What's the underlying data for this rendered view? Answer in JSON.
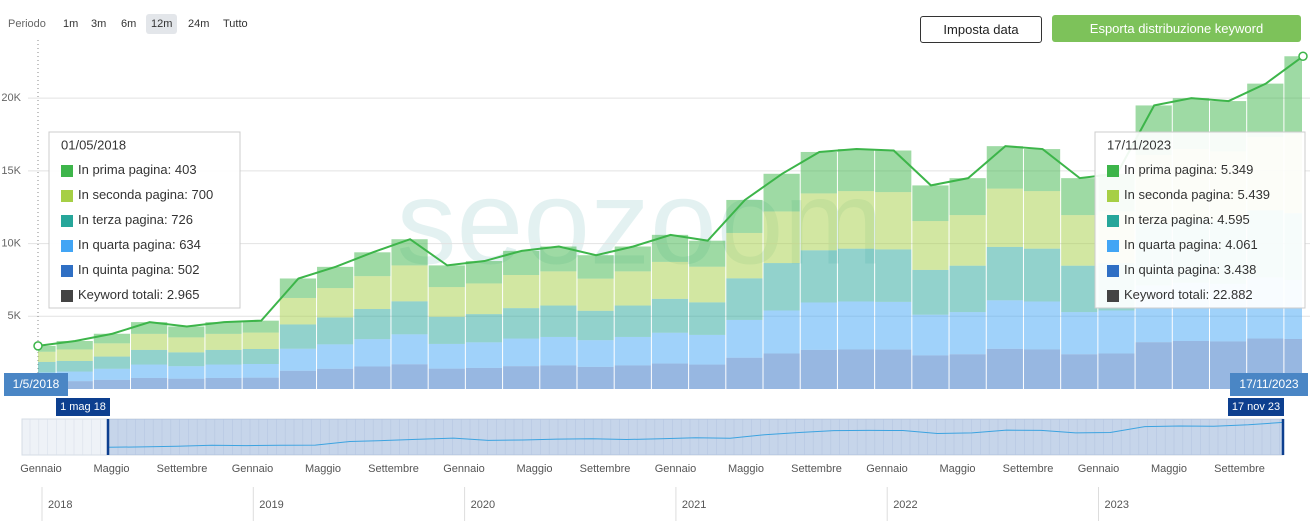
{
  "toolbar": {
    "period_label": "Periodo",
    "periods": [
      {
        "label": "1m"
      },
      {
        "label": "3m"
      },
      {
        "label": "6m"
      },
      {
        "label": "12m",
        "selected": true
      },
      {
        "label": "24m"
      },
      {
        "label": "Tutto"
      }
    ]
  },
  "buttons": {
    "set_date": "Imposta data",
    "export": "Esporta distribuzione keyword"
  },
  "watermark": "seozoom",
  "chart_data": {
    "type": "bar",
    "stacked": true,
    "categories": [
      "1/5/2018",
      null,
      null,
      null,
      null,
      null,
      null,
      null,
      null,
      null,
      null,
      null,
      null,
      null,
      null,
      null,
      null,
      null,
      null,
      null,
      null,
      null,
      null,
      null,
      null,
      null,
      null,
      null,
      null,
      null,
      null,
      null,
      null,
      null,
      "17/11/2023"
    ],
    "series": [
      {
        "name": "In prima pagina",
        "color": "#3db54a",
        "values": [
          403,
          580,
          660,
          810,
          750,
          810,
          820,
          1340,
          1460,
          1640,
          1800,
          1490,
          1540,
          1660,
          1710,
          1610,
          1710,
          1860,
          1790,
          2270,
          2590,
          2850,
          2890,
          2860,
          2450,
          2540,
          2920,
          2890,
          2540,
          2590,
          3410,
          3500,
          3460,
          3670,
          5349
        ],
        "value_labels": [
          "403",
          null,
          null,
          null,
          null,
          null,
          null,
          null,
          null,
          null,
          null,
          null,
          null,
          null,
          null,
          null,
          null,
          null,
          null,
          null,
          null,
          null,
          null,
          null,
          null,
          null,
          null,
          null,
          null,
          null,
          null,
          null,
          null,
          null,
          "5.349"
        ]
      },
      {
        "name": "In seconda pagina",
        "color": "#a6cf45",
        "values": [
          700,
          790,
          910,
          1100,
          1030,
          1100,
          1130,
          1820,
          2020,
          2260,
          2470,
          2040,
          2110,
          2280,
          2350,
          2210,
          2350,
          2540,
          2450,
          3120,
          3550,
          3910,
          3960,
          3940,
          3360,
          3480,
          4010,
          3960,
          3480,
          3550,
          4680,
          4800,
          4750,
          5040,
          5439
        ],
        "value_labels": [
          "700",
          null,
          null,
          null,
          null,
          null,
          null,
          null,
          null,
          null,
          null,
          null,
          null,
          null,
          null,
          null,
          null,
          null,
          null,
          null,
          null,
          null,
          null,
          null,
          null,
          null,
          null,
          null,
          null,
          null,
          null,
          null,
          null,
          null,
          "5.439"
        ]
      },
      {
        "name": "In terza pagina",
        "color": "#26a69a",
        "values": [
          726,
          730,
          840,
          1010,
          950,
          1010,
          1030,
          1670,
          1850,
          2070,
          2270,
          1870,
          1940,
          2090,
          2160,
          2020,
          2160,
          2330,
          2240,
          2860,
          3260,
          3590,
          3630,
          3610,
          3080,
          3190,
          3670,
          3630,
          3190,
          3260,
          4290,
          4400,
          4360,
          4620,
          4595
        ],
        "value_labels": [
          "726",
          null,
          null,
          null,
          null,
          null,
          null,
          null,
          null,
          null,
          null,
          null,
          null,
          null,
          null,
          null,
          null,
          null,
          null,
          null,
          null,
          null,
          null,
          null,
          null,
          null,
          null,
          null,
          null,
          null,
          null,
          null,
          null,
          null,
          "4.595"
        ]
      },
      {
        "name": "In quarta pagina",
        "color": "#42a5f5",
        "values": [
          634,
          660,
          760,
          920,
          860,
          920,
          940,
          1520,
          1680,
          1880,
          2060,
          1700,
          1760,
          1900,
          1960,
          1840,
          1960,
          2120,
          2040,
          2600,
          2960,
          3260,
          3300,
          3280,
          2800,
          2900,
          3340,
          3300,
          2900,
          2960,
          3900,
          4000,
          3960,
          4200,
          4061
        ],
        "value_labels": [
          "634",
          null,
          null,
          null,
          null,
          null,
          null,
          null,
          null,
          null,
          null,
          null,
          null,
          null,
          null,
          null,
          null,
          null,
          null,
          null,
          null,
          null,
          null,
          null,
          null,
          null,
          null,
          null,
          null,
          null,
          null,
          null,
          null,
          null,
          "4.061"
        ]
      },
      {
        "name": "In quinta pagina",
        "color": "#2f6fc4",
        "values": [
          502,
          540,
          630,
          760,
          710,
          760,
          780,
          1250,
          1390,
          1550,
          1700,
          1400,
          1450,
          1570,
          1620,
          1520,
          1620,
          1750,
          1680,
          2150,
          2440,
          2690,
          2720,
          2710,
          2310,
          2390,
          2760,
          2720,
          2390,
          2440,
          3220,
          3300,
          3270,
          3470,
          3438
        ],
        "value_labels": [
          "502",
          null,
          null,
          null,
          null,
          null,
          null,
          null,
          null,
          null,
          null,
          null,
          null,
          null,
          null,
          null,
          null,
          null,
          null,
          null,
          null,
          null,
          null,
          null,
          null,
          null,
          null,
          null,
          null,
          null,
          null,
          null,
          null,
          null,
          "3.438"
        ]
      }
    ],
    "ylim": [
      0,
      24000
    ],
    "yticks": [
      {
        "value": 5000,
        "label": "5K"
      },
      {
        "value": 10000,
        "label": "10K"
      },
      {
        "value": 15000,
        "label": "15K"
      },
      {
        "value": 20000,
        "label": "20K"
      }
    ],
    "grid": true,
    "label_separator": ": ",
    "total_name": "Keyword totali",
    "total_color": "#444444",
    "tooltips": [
      {
        "title": "01/05/2018",
        "total_label": "2.965"
      },
      {
        "title": "17/11/2023",
        "total_label": "22.882"
      }
    ]
  },
  "navigator": {
    "start_label": "1 mag 18",
    "end_label": "17 nov 23",
    "months": [
      "Gennaio",
      "Maggio",
      "Settembre",
      "Gennaio",
      "Maggio",
      "Settembre",
      "Gennaio",
      "Maggio",
      "Settembre",
      "Gennaio",
      "Maggio",
      "Settembre",
      "Gennaio",
      "Maggio",
      "Settembre",
      "Gennaio",
      "Maggio",
      "Settembre"
    ],
    "years": [
      "2018",
      "2019",
      "2020",
      "2021",
      "2022",
      "2023"
    ]
  }
}
